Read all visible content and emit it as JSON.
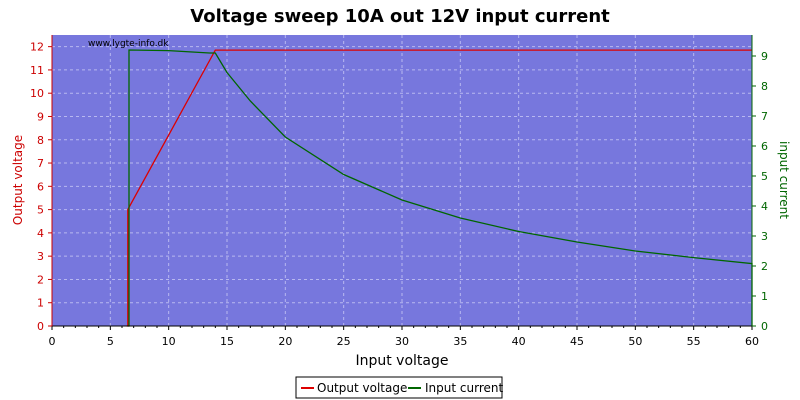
{
  "chart_data": {
    "type": "line",
    "title": "Voltage sweep 10A out 12V input current",
    "watermark": "www.lygte-info.dk",
    "xlabel": "Input voltage",
    "ylabel_left": "Output voltage",
    "ylabel_right": "input current",
    "xlim": [
      0,
      60
    ],
    "ylim_left": [
      0,
      12.5
    ],
    "ylim_right": [
      0,
      9.7
    ],
    "x_ticks": [
      0,
      5,
      10,
      15,
      20,
      25,
      30,
      35,
      40,
      45,
      50,
      55,
      60
    ],
    "y_left_ticks": [
      0,
      1,
      2,
      3,
      4,
      5,
      6,
      7,
      8,
      9,
      10,
      11,
      12
    ],
    "y_right_ticks": [
      0,
      1,
      2,
      3,
      4,
      5,
      6,
      7,
      8,
      9
    ],
    "grid": true,
    "legend_position": "bottom-center",
    "colors": {
      "plot_background": "#7777dd",
      "output_voltage": "#dd0000",
      "input_current": "#006600",
      "grid": "#b8b8f0"
    },
    "series": [
      {
        "name": "Output voltage",
        "axis": "left",
        "x": [
          6.4,
          6.5,
          6.5,
          14.0,
          20,
          30,
          40,
          50,
          60
        ],
        "y": [
          0.0,
          0.0,
          5.0,
          11.85,
          11.85,
          11.85,
          11.85,
          11.85,
          11.85
        ]
      },
      {
        "name": "Input current",
        "axis": "right",
        "x": [
          6.5,
          6.6,
          6.6,
          10,
          13.5,
          14.0,
          15,
          17,
          20,
          25,
          30,
          35,
          40,
          45,
          50,
          55,
          60,
          60
        ],
        "y": [
          0.0,
          0.0,
          9.2,
          9.18,
          9.1,
          9.1,
          8.45,
          7.5,
          6.3,
          5.05,
          4.2,
          3.6,
          3.15,
          2.8,
          2.5,
          2.28,
          2.08,
          0.0
        ]
      }
    ],
    "legend": [
      "Output voltage",
      "Input current"
    ]
  }
}
